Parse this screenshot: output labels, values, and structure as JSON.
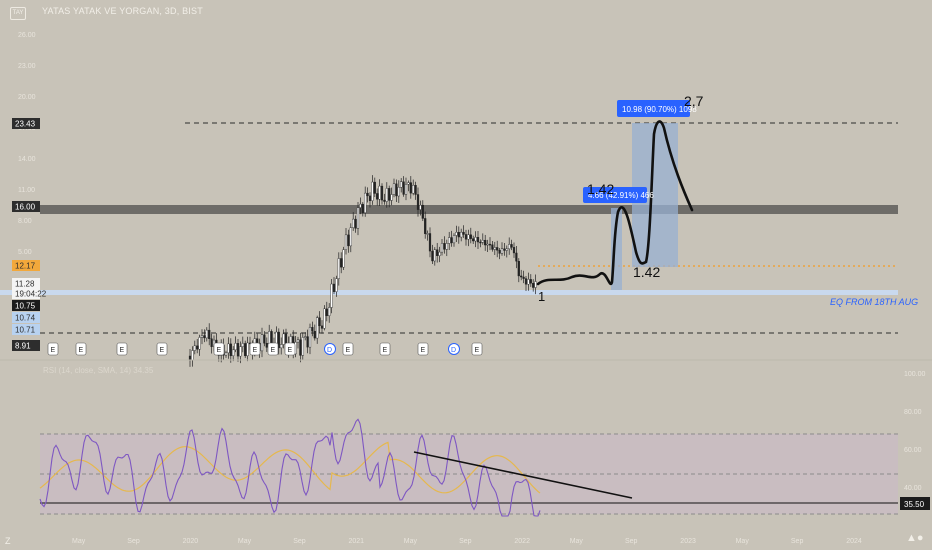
{
  "header": {
    "title": "YATAS YATAK VE YORGAN, 3D, BIST",
    "ticker_button": "TAY"
  },
  "price_badges": [
    {
      "id": "badge-23-43",
      "text": "23.43",
      "bg": "#2d2d2d",
      "fg": "#ffffff"
    },
    {
      "id": "badge-16-00",
      "text": "16.00",
      "bg": "#2d2d2d",
      "fg": "#ffffff"
    },
    {
      "id": "badge-12-17",
      "text": "12.17",
      "bg": "#f2a83b",
      "fg": "#2d2d2d"
    },
    {
      "id": "badge-11-28",
      "text": "11.28",
      "bg": "#f4f4f4",
      "fg": "#2d2d2d"
    },
    {
      "id": "badge-time",
      "text": "19:04:22",
      "bg": "#f4f4f4",
      "fg": "#2d2d2d"
    },
    {
      "id": "badge-10-75",
      "text": "10.75",
      "bg": "#1b1b1b",
      "fg": "#ffffff"
    },
    {
      "id": "badge-10-74",
      "text": "10.74",
      "bg": "#b8d2f0",
      "fg": "#2d2d2d"
    },
    {
      "id": "badge-10-71",
      "text": "10.71",
      "bg": "#b8d2f0",
      "fg": "#2d2d2d"
    },
    {
      "id": "badge-8-91",
      "text": "8.91",
      "bg": "#2d2d2d",
      "fg": "#ffffff"
    }
  ],
  "price_axis_ticks": [
    "26.00",
    "23.00",
    "20.00",
    "17.00",
    "14.00",
    "11.00",
    "8.00",
    "5.00",
    "2.00"
  ],
  "annotations": {
    "eq_label": "EQ FROM  18TH AUG",
    "box1_label": "4.66 (42.91%) 466",
    "box2_label": "10.98 (90.70%) 1098",
    "hand_1": "1",
    "hand_142_top": "1.42",
    "hand_142_bottom": "1.42",
    "hand_27": "2,7"
  },
  "event_markers": [
    "E",
    "E",
    "E",
    "E",
    "E",
    "E",
    "E",
    "E",
    "D",
    "E",
    "E",
    "E",
    "D",
    "E"
  ],
  "rsi": {
    "header": "RSI (14, close, SMA, 14) 34.35",
    "axis_ticks": [
      "100.00",
      "80.00",
      "60.00",
      "40.00"
    ],
    "badge": "35.50"
  },
  "time_axis": [
    "May",
    "Sep",
    "2020",
    "May",
    "Sep",
    "2021",
    "May",
    "Sep",
    "2022",
    "May",
    "Sep",
    "2023",
    "May",
    "Sep",
    "2024"
  ],
  "chart_data": {
    "type": "candlestick",
    "title": "YATAS YATAK VE YORGAN, 3D, BIST",
    "price_levels": [
      23.43,
      16.0,
      12.17,
      11.28,
      10.75,
      10.74,
      10.71,
      8.91
    ],
    "horizontal_lines": {
      "resistance": 23.43,
      "zone": 16.0,
      "target_dotted": 12.17,
      "support_band": 10.75,
      "support": 8.91
    },
    "measure_boxes": [
      {
        "label": "4.66 (42.91%) 466",
        "change": 4.66,
        "percent": 42.91
      },
      {
        "label": "10.98 (90.70%) 1098",
        "change": 10.98,
        "percent": 90.7
      }
    ],
    "rsi": {
      "period": 14,
      "value": 34.35,
      "badge": 35.5,
      "levels": [
        70,
        50,
        30
      ]
    },
    "legend_position": "top-left",
    "colors": {
      "background": "#c8c3b8",
      "zone": "#6e6c68",
      "measure_box": "#98b0d2",
      "label": "#2962ff",
      "rsi_line": "#7e57c2",
      "rsi_signal": "#e6b84d",
      "dotted_target": "#f59b23"
    }
  }
}
